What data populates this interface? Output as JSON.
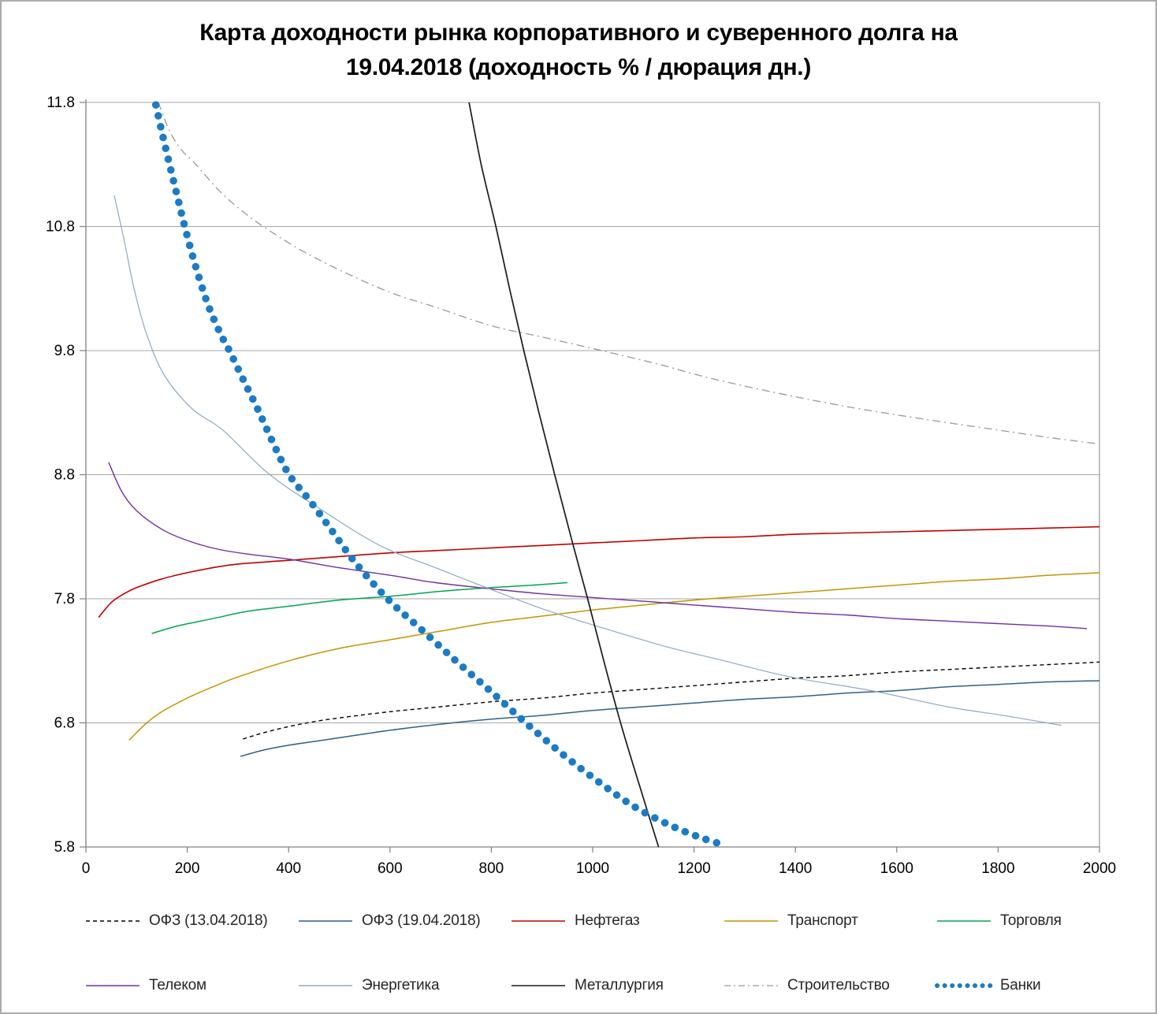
{
  "title": {
    "line1": "Карта доходности рынка корпоративного и суверенного долга на",
    "line2": "19.04.2018 (доходность % / дюрация дн.)"
  },
  "colors": {
    "gridline": "#a6a6a6",
    "axis": "#808080",
    "background": "#ffffff",
    "tick_text": "#000000"
  },
  "chart_data": {
    "type": "line",
    "title": "Карта доходности рынка корпоративного и суверенного долга на 19.04.2018 (доходность % / дюрация дн.)",
    "xlabel": "",
    "ylabel": "",
    "xlim": [
      0,
      2000
    ],
    "ylim": [
      5.8,
      11.8
    ],
    "x_ticks": [
      0,
      200,
      400,
      600,
      800,
      1000,
      1200,
      1400,
      1600,
      1800,
      2000
    ],
    "y_ticks": [
      5.8,
      6.8,
      7.8,
      8.8,
      9.8,
      10.8,
      11.8
    ],
    "grid": "horizontal",
    "legend_position": "bottom",
    "legend_rows": [
      [
        0,
        1,
        2,
        3,
        4
      ],
      [
        5,
        6,
        7,
        8,
        9
      ]
    ],
    "series": [
      {
        "name": "ОФЗ (13.04.2018)",
        "color": "#000000",
        "style": "dashed",
        "width": 1.4,
        "points": [
          [
            310,
            6.67
          ],
          [
            350,
            6.72
          ],
          [
            400,
            6.77
          ],
          [
            450,
            6.81
          ],
          [
            500,
            6.84
          ],
          [
            600,
            6.89
          ],
          [
            700,
            6.93
          ],
          [
            800,
            6.97
          ],
          [
            900,
            7.0
          ],
          [
            1000,
            7.04
          ],
          [
            1100,
            7.07
          ],
          [
            1200,
            7.1
          ],
          [
            1300,
            7.13
          ],
          [
            1400,
            7.16
          ],
          [
            1500,
            7.18
          ],
          [
            1600,
            7.21
          ],
          [
            1700,
            7.23
          ],
          [
            1800,
            7.25
          ],
          [
            1900,
            7.27
          ],
          [
            2000,
            7.29
          ]
        ]
      },
      {
        "name": "ОФЗ (19.04.2018)",
        "color": "#2d6187",
        "style": "solid",
        "width": 1.5,
        "points": [
          [
            305,
            6.53
          ],
          [
            350,
            6.58
          ],
          [
            400,
            6.62
          ],
          [
            450,
            6.65
          ],
          [
            500,
            6.68
          ],
          [
            600,
            6.74
          ],
          [
            700,
            6.79
          ],
          [
            800,
            6.83
          ],
          [
            900,
            6.86
          ],
          [
            1000,
            6.9
          ],
          [
            1100,
            6.93
          ],
          [
            1200,
            6.96
          ],
          [
            1300,
            6.99
          ],
          [
            1400,
            7.01
          ],
          [
            1500,
            7.04
          ],
          [
            1600,
            7.06
          ],
          [
            1700,
            7.09
          ],
          [
            1800,
            7.11
          ],
          [
            1900,
            7.13
          ],
          [
            2000,
            7.14
          ]
        ]
      },
      {
        "name": "Нефтегаз",
        "color": "#c00000",
        "style": "solid",
        "width": 1.6,
        "points": [
          [
            25,
            7.65
          ],
          [
            50,
            7.77
          ],
          [
            75,
            7.84
          ],
          [
            100,
            7.89
          ],
          [
            150,
            7.96
          ],
          [
            200,
            8.01
          ],
          [
            250,
            8.05
          ],
          [
            300,
            8.08
          ],
          [
            400,
            8.11
          ],
          [
            500,
            8.14
          ],
          [
            600,
            8.17
          ],
          [
            700,
            8.19
          ],
          [
            800,
            8.21
          ],
          [
            900,
            8.23
          ],
          [
            1000,
            8.25
          ],
          [
            1100,
            8.27
          ],
          [
            1200,
            8.29
          ],
          [
            1300,
            8.3
          ],
          [
            1400,
            8.32
          ],
          [
            1500,
            8.33
          ],
          [
            1600,
            8.34
          ],
          [
            1700,
            8.35
          ],
          [
            1800,
            8.36
          ],
          [
            1900,
            8.37
          ],
          [
            2000,
            8.38
          ]
        ]
      },
      {
        "name": "Транспорт",
        "color": "#c49500",
        "style": "solid",
        "width": 1.5,
        "points": [
          [
            85,
            6.66
          ],
          [
            120,
            6.8
          ],
          [
            150,
            6.89
          ],
          [
            200,
            7.0
          ],
          [
            250,
            7.09
          ],
          [
            300,
            7.17
          ],
          [
            400,
            7.3
          ],
          [
            500,
            7.4
          ],
          [
            600,
            7.47
          ],
          [
            700,
            7.54
          ],
          [
            800,
            7.61
          ],
          [
            900,
            7.66
          ],
          [
            1000,
            7.71
          ],
          [
            1100,
            7.75
          ],
          [
            1200,
            7.79
          ],
          [
            1300,
            7.82
          ],
          [
            1400,
            7.85
          ],
          [
            1500,
            7.88
          ],
          [
            1600,
            7.91
          ],
          [
            1700,
            7.94
          ],
          [
            1800,
            7.96
          ],
          [
            1900,
            7.99
          ],
          [
            2000,
            8.01
          ]
        ]
      },
      {
        "name": "Торговля",
        "color": "#00a64f",
        "style": "solid",
        "width": 1.5,
        "points": [
          [
            130,
            7.52
          ],
          [
            180,
            7.58
          ],
          [
            250,
            7.64
          ],
          [
            320,
            7.7
          ],
          [
            400,
            7.74
          ],
          [
            500,
            7.79
          ],
          [
            600,
            7.82
          ],
          [
            700,
            7.86
          ],
          [
            800,
            7.89
          ],
          [
            880,
            7.91
          ],
          [
            950,
            7.93
          ]
        ]
      },
      {
        "name": "Телеком",
        "color": "#7030a0",
        "style": "solid",
        "width": 1.4,
        "points": [
          [
            45,
            8.9
          ],
          [
            70,
            8.67
          ],
          [
            100,
            8.51
          ],
          [
            150,
            8.36
          ],
          [
            200,
            8.27
          ],
          [
            260,
            8.2
          ],
          [
            320,
            8.16
          ],
          [
            400,
            8.12
          ],
          [
            500,
            8.05
          ],
          [
            600,
            7.99
          ],
          [
            690,
            7.93
          ],
          [
            800,
            7.88
          ],
          [
            900,
            7.84
          ],
          [
            1000,
            7.81
          ],
          [
            1100,
            7.78
          ],
          [
            1200,
            7.75
          ],
          [
            1300,
            7.72
          ],
          [
            1400,
            7.69
          ],
          [
            1500,
            7.67
          ],
          [
            1600,
            7.64
          ],
          [
            1700,
            7.62
          ],
          [
            1800,
            7.6
          ],
          [
            1900,
            7.58
          ],
          [
            1975,
            7.56
          ]
        ]
      },
      {
        "name": "Энергетика",
        "color": "#90a8c4",
        "style": "solid",
        "width": 1.2,
        "points": [
          [
            56,
            11.05
          ],
          [
            75,
            10.7
          ],
          [
            95,
            10.3
          ],
          [
            120,
            9.93
          ],
          [
            155,
            9.6
          ],
          [
            210,
            9.33
          ],
          [
            270,
            9.16
          ],
          [
            360,
            8.81
          ],
          [
            460,
            8.53
          ],
          [
            580,
            8.23
          ],
          [
            690,
            8.05
          ],
          [
            790,
            7.89
          ],
          [
            900,
            7.72
          ],
          [
            1000,
            7.59
          ],
          [
            1140,
            7.42
          ],
          [
            1260,
            7.3
          ],
          [
            1390,
            7.17
          ],
          [
            1550,
            7.06
          ],
          [
            1700,
            6.93
          ],
          [
            1810,
            6.86
          ],
          [
            1925,
            6.78
          ]
        ]
      },
      {
        "name": "Металлургия",
        "color": "#1a1a1a",
        "style": "solid",
        "width": 1.7,
        "points": [
          [
            756,
            11.8
          ],
          [
            780,
            11.3
          ],
          [
            809,
            10.8
          ],
          [
            836,
            10.3
          ],
          [
            864,
            9.8
          ],
          [
            894,
            9.3
          ],
          [
            925,
            8.8
          ],
          [
            957,
            8.3
          ],
          [
            990,
            7.8
          ],
          [
            1022,
            7.3
          ],
          [
            1055,
            6.8
          ],
          [
            1092,
            6.3
          ],
          [
            1130,
            5.8
          ]
        ]
      },
      {
        "name": "Строительство",
        "color": "#999999",
        "style": "dashdot",
        "width": 1.3,
        "points": [
          [
            143,
            11.8
          ],
          [
            165,
            11.57
          ],
          [
            190,
            11.41
          ],
          [
            215,
            11.31
          ],
          [
            265,
            11.08
          ],
          [
            310,
            10.92
          ],
          [
            350,
            10.8
          ],
          [
            420,
            10.62
          ],
          [
            500,
            10.45
          ],
          [
            600,
            10.27
          ],
          [
            690,
            10.15
          ],
          [
            800,
            10.0
          ],
          [
            900,
            9.91
          ],
          [
            1018,
            9.8
          ],
          [
            1130,
            9.69
          ],
          [
            1230,
            9.58
          ],
          [
            1350,
            9.47
          ],
          [
            1500,
            9.35
          ],
          [
            1650,
            9.25
          ],
          [
            1800,
            9.16
          ],
          [
            1900,
            9.1
          ],
          [
            1995,
            9.05
          ]
        ]
      },
      {
        "name": "Банки",
        "color": "#1b7bc4",
        "style": "dotted",
        "width": 9.5,
        "points": [
          [
            138,
            11.78
          ],
          [
            150,
            11.56
          ],
          [
            165,
            11.3
          ],
          [
            180,
            11.05
          ],
          [
            195,
            10.8
          ],
          [
            215,
            10.5
          ],
          [
            240,
            10.18
          ],
          [
            265,
            9.94
          ],
          [
            283,
            9.8
          ],
          [
            310,
            9.57
          ],
          [
            340,
            9.32
          ],
          [
            370,
            9.05
          ],
          [
            401,
            8.8
          ],
          [
            440,
            8.6
          ],
          [
            480,
            8.38
          ],
          [
            530,
            8.1
          ],
          [
            595,
            7.8
          ],
          [
            660,
            7.56
          ],
          [
            730,
            7.3
          ],
          [
            800,
            7.05
          ],
          [
            868,
            6.8
          ],
          [
            940,
            6.55
          ],
          [
            1010,
            6.33
          ],
          [
            1080,
            6.13
          ],
          [
            1150,
            5.98
          ],
          [
            1210,
            5.88
          ],
          [
            1264,
            5.81
          ]
        ]
      }
    ]
  }
}
